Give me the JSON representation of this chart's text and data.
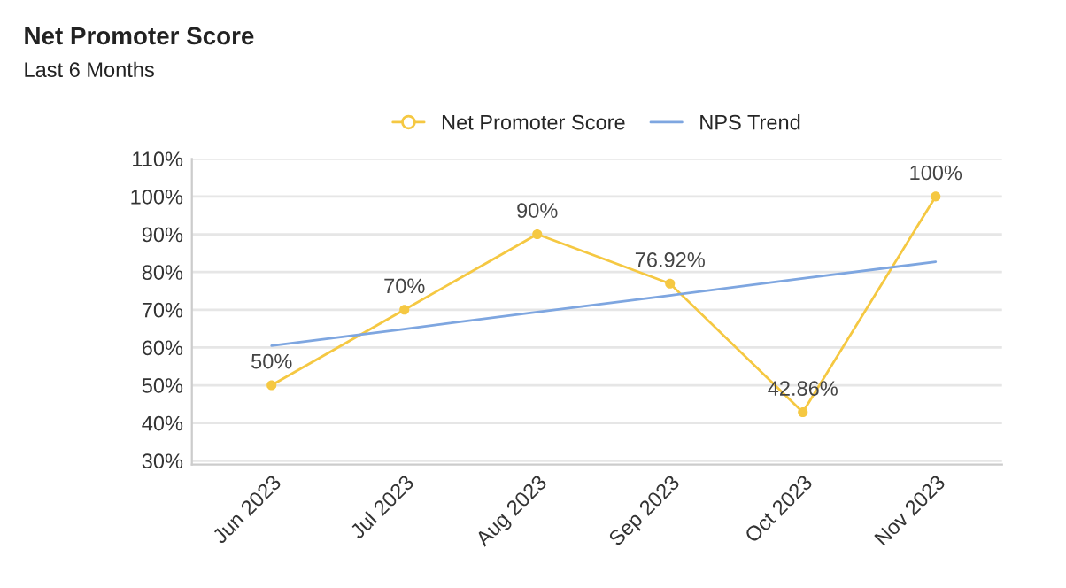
{
  "chart_data": {
    "type": "line",
    "title": "Net Promoter Score",
    "subtitle": "Last 6 Months",
    "categories": [
      "Jun 2023",
      "Jul 2023",
      "Aug 2023",
      "Sep 2023",
      "Oct 2023",
      "Nov 2023"
    ],
    "series": [
      {
        "name": "Net Promoter Score",
        "color": "#f5c842",
        "values": [
          50,
          70,
          90,
          76.92,
          42.86,
          100
        ],
        "value_labels": [
          "50%",
          "70%",
          "90%",
          "76.92%",
          "42.86%",
          "100%"
        ],
        "marker": "circle"
      },
      {
        "name": "NPS Trend",
        "color": "#7ea6e0",
        "values": [
          60.5,
          64.9,
          69.4,
          73.8,
          78.3,
          82.7
        ],
        "marker": "none"
      }
    ],
    "ylim": [
      29,
      110
    ],
    "yticks": [
      {
        "value": 30,
        "label": "30%"
      },
      {
        "value": 40,
        "label": "40%"
      },
      {
        "value": 50,
        "label": "50%"
      },
      {
        "value": 60,
        "label": "60%"
      },
      {
        "value": 70,
        "label": "70%"
      },
      {
        "value": 80,
        "label": "80%"
      },
      {
        "value": 90,
        "label": "90%"
      },
      {
        "value": 100,
        "label": "100%"
      },
      {
        "value": 110,
        "label": "110%"
      }
    ],
    "grid": "y",
    "legend": "top",
    "line_style": "solid"
  }
}
